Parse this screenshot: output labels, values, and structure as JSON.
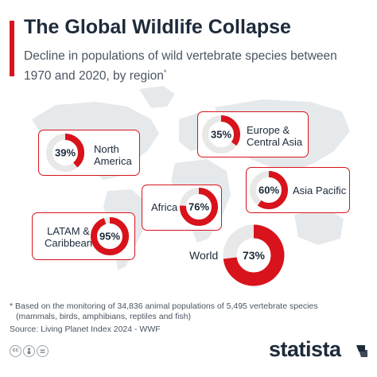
{
  "header": {
    "title": "The Global Wildlife Collapse",
    "subtitle": "Decline in populations of wild vertebrate species between 1970 and 2020, by region",
    "subtitle_mark": "*"
  },
  "colors": {
    "accent": "#d8131b",
    "ring_track": "#e8e8e8",
    "map": "#e6e9ec",
    "text": "#1d2a3a"
  },
  "chart_data": {
    "type": "pie",
    "unit": "%",
    "categories": [
      "North America",
      "Europe & Central Asia",
      "Asia Pacific",
      "Africa",
      "LATAM & Caribbean",
      "World"
    ],
    "values": [
      39,
      35,
      60,
      76,
      95,
      73
    ]
  },
  "regions": {
    "north_america": {
      "label_lines": [
        "North",
        "America"
      ],
      "value_text": "39%",
      "value": 39
    },
    "europe": {
      "label_lines": [
        "Europe &",
        "Central Asia"
      ],
      "value_text": "35%",
      "value": 35
    },
    "asia_pacific": {
      "label_lines": [
        "Asia Pacific"
      ],
      "value_text": "60%",
      "value": 60
    },
    "africa": {
      "label_lines": [
        "Africa"
      ],
      "value_text": "76%",
      "value": 76
    },
    "latam": {
      "label_lines": [
        "LATAM &",
        "Caribbean"
      ],
      "value_text": "95%",
      "value": 95
    },
    "world": {
      "label": "World",
      "value_text": "73%",
      "value": 73
    }
  },
  "footer": {
    "footnote_lines": [
      "* Based on the monitoring of 34,836 animal populations of 5,495 vertebrate species",
      "(mammals, birds, amphibians, reptiles and fish)"
    ],
    "source": "Source: Living Planet Index 2024 - WWF",
    "license_icons": [
      "cc-icon",
      "person-icon",
      "equals-icon"
    ],
    "brand": "statista"
  }
}
